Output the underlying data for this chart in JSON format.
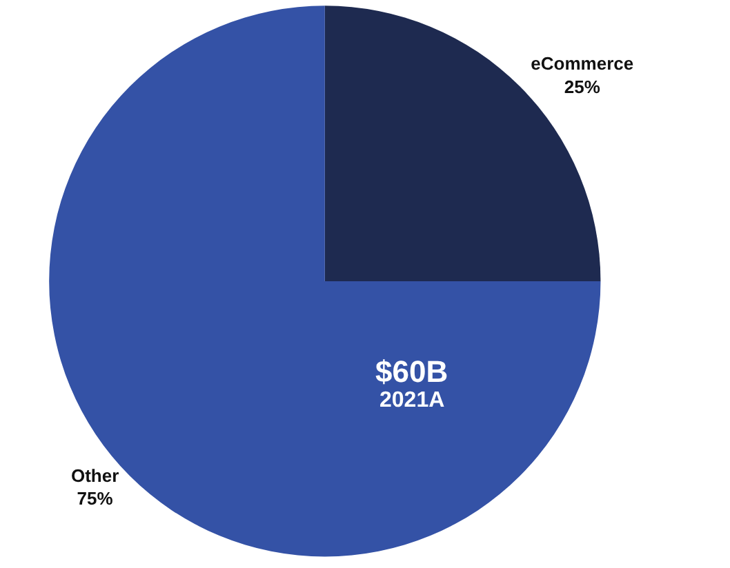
{
  "chart_data": {
    "type": "pie",
    "categories": [
      "eCommerce",
      "Other"
    ],
    "values": [
      25,
      75
    ],
    "value_labels": [
      "25%",
      "75%"
    ],
    "colors": [
      "#1e2a50",
      "#3452a6"
    ],
    "legend": false,
    "annotations": [
      "$60B",
      "2021A"
    ]
  }
}
